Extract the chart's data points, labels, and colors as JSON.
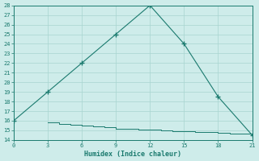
{
  "xlabel": "Humidex (Indice chaleur)",
  "line1_x": [
    0,
    3,
    6,
    9,
    12,
    15,
    18,
    21
  ],
  "line1_y": [
    16,
    19,
    22,
    25,
    28,
    24,
    18.5,
    14.5
  ],
  "line2_x": [
    3,
    4,
    5,
    6,
    7,
    8,
    9,
    10,
    11,
    12,
    13,
    14,
    15,
    16,
    17,
    18,
    19,
    20,
    21
  ],
  "line2_y": [
    15.8,
    15.7,
    15.6,
    15.5,
    15.4,
    15.3,
    15.2,
    15.15,
    15.1,
    15.05,
    15.0,
    14.95,
    14.9,
    14.85,
    14.8,
    14.75,
    14.7,
    14.65,
    14.6
  ],
  "line_color": "#1a7a6e",
  "bg_color": "#ceecea",
  "grid_color": "#a8d4d0",
  "xlim": [
    0,
    21
  ],
  "ylim": [
    14,
    28
  ],
  "xticks": [
    0,
    3,
    6,
    9,
    12,
    15,
    18,
    21
  ],
  "yticks": [
    14,
    15,
    16,
    17,
    18,
    19,
    20,
    21,
    22,
    23,
    24,
    25,
    26,
    27,
    28
  ]
}
